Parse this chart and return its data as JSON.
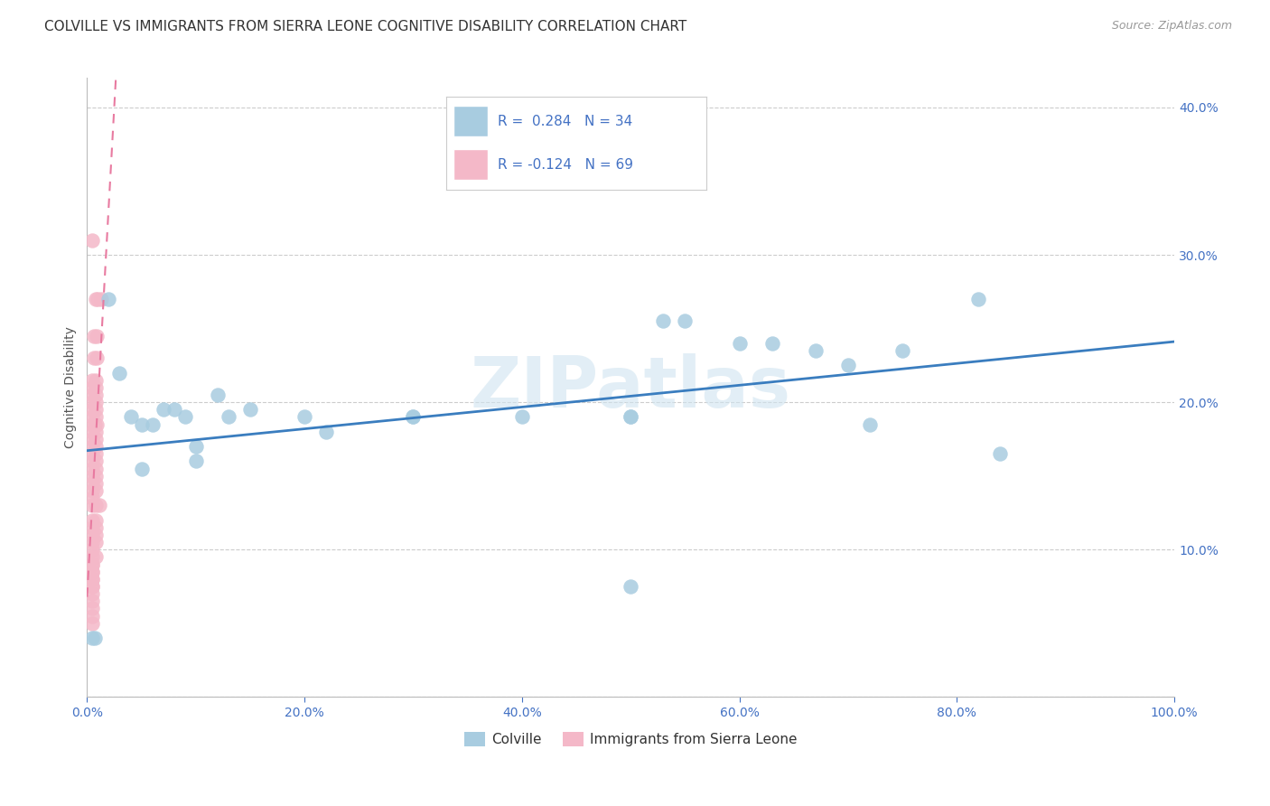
{
  "title": "COLVILLE VS IMMIGRANTS FROM SIERRA LEONE COGNITIVE DISABILITY CORRELATION CHART",
  "source": "Source: ZipAtlas.com",
  "xlabel": "",
  "ylabel": "Cognitive Disability",
  "xlim": [
    0,
    1.0
  ],
  "ylim": [
    0,
    0.42
  ],
  "xticks": [
    0.0,
    0.2,
    0.4,
    0.6,
    0.8,
    1.0
  ],
  "yticks": [
    0.0,
    0.1,
    0.2,
    0.3,
    0.4
  ],
  "ytick_labels": [
    "",
    "10.0%",
    "20.0%",
    "30.0%",
    "40.0%"
  ],
  "xtick_labels": [
    "0.0%",
    "20.0%",
    "40.0%",
    "60.0%",
    "80.0%",
    "100.0%"
  ],
  "blue_R": 0.284,
  "blue_N": 34,
  "pink_R": -0.124,
  "pink_N": 69,
  "blue_label": "Colville",
  "pink_label": "Immigrants from Sierra Leone",
  "watermark": "ZIPatlas",
  "blue_color": "#a8cce0",
  "pink_color": "#f4b8c8",
  "blue_line_color": "#3a7dbf",
  "pink_line_color": "#e87aa0",
  "text_color": "#4472c4",
  "title_color": "#333333",
  "blue_scatter": [
    [
      0.007,
      0.04
    ],
    [
      0.02,
      0.27
    ],
    [
      0.03,
      0.22
    ],
    [
      0.04,
      0.19
    ],
    [
      0.05,
      0.185
    ],
    [
      0.05,
      0.155
    ],
    [
      0.06,
      0.185
    ],
    [
      0.07,
      0.195
    ],
    [
      0.08,
      0.195
    ],
    [
      0.09,
      0.19
    ],
    [
      0.1,
      0.17
    ],
    [
      0.1,
      0.16
    ],
    [
      0.12,
      0.205
    ],
    [
      0.13,
      0.19
    ],
    [
      0.15,
      0.195
    ],
    [
      0.2,
      0.19
    ],
    [
      0.22,
      0.18
    ],
    [
      0.3,
      0.19
    ],
    [
      0.3,
      0.19
    ],
    [
      0.4,
      0.19
    ],
    [
      0.5,
      0.19
    ],
    [
      0.5,
      0.19
    ],
    [
      0.53,
      0.255
    ],
    [
      0.55,
      0.255
    ],
    [
      0.6,
      0.24
    ],
    [
      0.63,
      0.24
    ],
    [
      0.67,
      0.235
    ],
    [
      0.7,
      0.225
    ],
    [
      0.72,
      0.185
    ],
    [
      0.75,
      0.235
    ],
    [
      0.82,
      0.27
    ],
    [
      0.84,
      0.165
    ],
    [
      0.5,
      0.075
    ],
    [
      0.005,
      0.04
    ]
  ],
  "pink_scatter": [
    [
      0.005,
      0.31
    ],
    [
      0.008,
      0.27
    ],
    [
      0.01,
      0.27
    ],
    [
      0.013,
      0.27
    ],
    [
      0.006,
      0.245
    ],
    [
      0.009,
      0.245
    ],
    [
      0.006,
      0.23
    ],
    [
      0.009,
      0.23
    ],
    [
      0.005,
      0.215
    ],
    [
      0.008,
      0.215
    ],
    [
      0.005,
      0.21
    ],
    [
      0.008,
      0.21
    ],
    [
      0.005,
      0.205
    ],
    [
      0.008,
      0.205
    ],
    [
      0.005,
      0.2
    ],
    [
      0.008,
      0.2
    ],
    [
      0.005,
      0.195
    ],
    [
      0.008,
      0.195
    ],
    [
      0.005,
      0.19
    ],
    [
      0.008,
      0.19
    ],
    [
      0.005,
      0.185
    ],
    [
      0.007,
      0.185
    ],
    [
      0.009,
      0.185
    ],
    [
      0.005,
      0.18
    ],
    [
      0.008,
      0.18
    ],
    [
      0.005,
      0.175
    ],
    [
      0.008,
      0.175
    ],
    [
      0.005,
      0.17
    ],
    [
      0.008,
      0.17
    ],
    [
      0.005,
      0.165
    ],
    [
      0.008,
      0.165
    ],
    [
      0.005,
      0.16
    ],
    [
      0.008,
      0.16
    ],
    [
      0.005,
      0.155
    ],
    [
      0.008,
      0.155
    ],
    [
      0.005,
      0.15
    ],
    [
      0.008,
      0.15
    ],
    [
      0.005,
      0.145
    ],
    [
      0.008,
      0.145
    ],
    [
      0.005,
      0.14
    ],
    [
      0.008,
      0.14
    ],
    [
      0.005,
      0.135
    ],
    [
      0.005,
      0.13
    ],
    [
      0.008,
      0.13
    ],
    [
      0.011,
      0.13
    ],
    [
      0.005,
      0.12
    ],
    [
      0.008,
      0.12
    ],
    [
      0.005,
      0.115
    ],
    [
      0.008,
      0.115
    ],
    [
      0.005,
      0.11
    ],
    [
      0.008,
      0.11
    ],
    [
      0.005,
      0.105
    ],
    [
      0.008,
      0.105
    ],
    [
      0.005,
      0.1
    ],
    [
      0.005,
      0.095
    ],
    [
      0.008,
      0.095
    ],
    [
      0.005,
      0.09
    ],
    [
      0.005,
      0.085
    ],
    [
      0.005,
      0.08
    ],
    [
      0.005,
      0.075
    ],
    [
      0.005,
      0.07
    ],
    [
      0.005,
      0.065
    ],
    [
      0.005,
      0.06
    ],
    [
      0.005,
      0.055
    ],
    [
      0.005,
      0.05
    ],
    [
      0.005,
      0.09
    ],
    [
      0.005,
      0.085
    ],
    [
      0.005,
      0.08
    ],
    [
      0.005,
      0.075
    ]
  ],
  "title_fontsize": 11,
  "axis_label_fontsize": 10,
  "tick_fontsize": 10,
  "legend_fontsize": 11,
  "source_fontsize": 9,
  "background_color": "#ffffff",
  "grid_color": "#cccccc",
  "tick_color": "#4472c4"
}
